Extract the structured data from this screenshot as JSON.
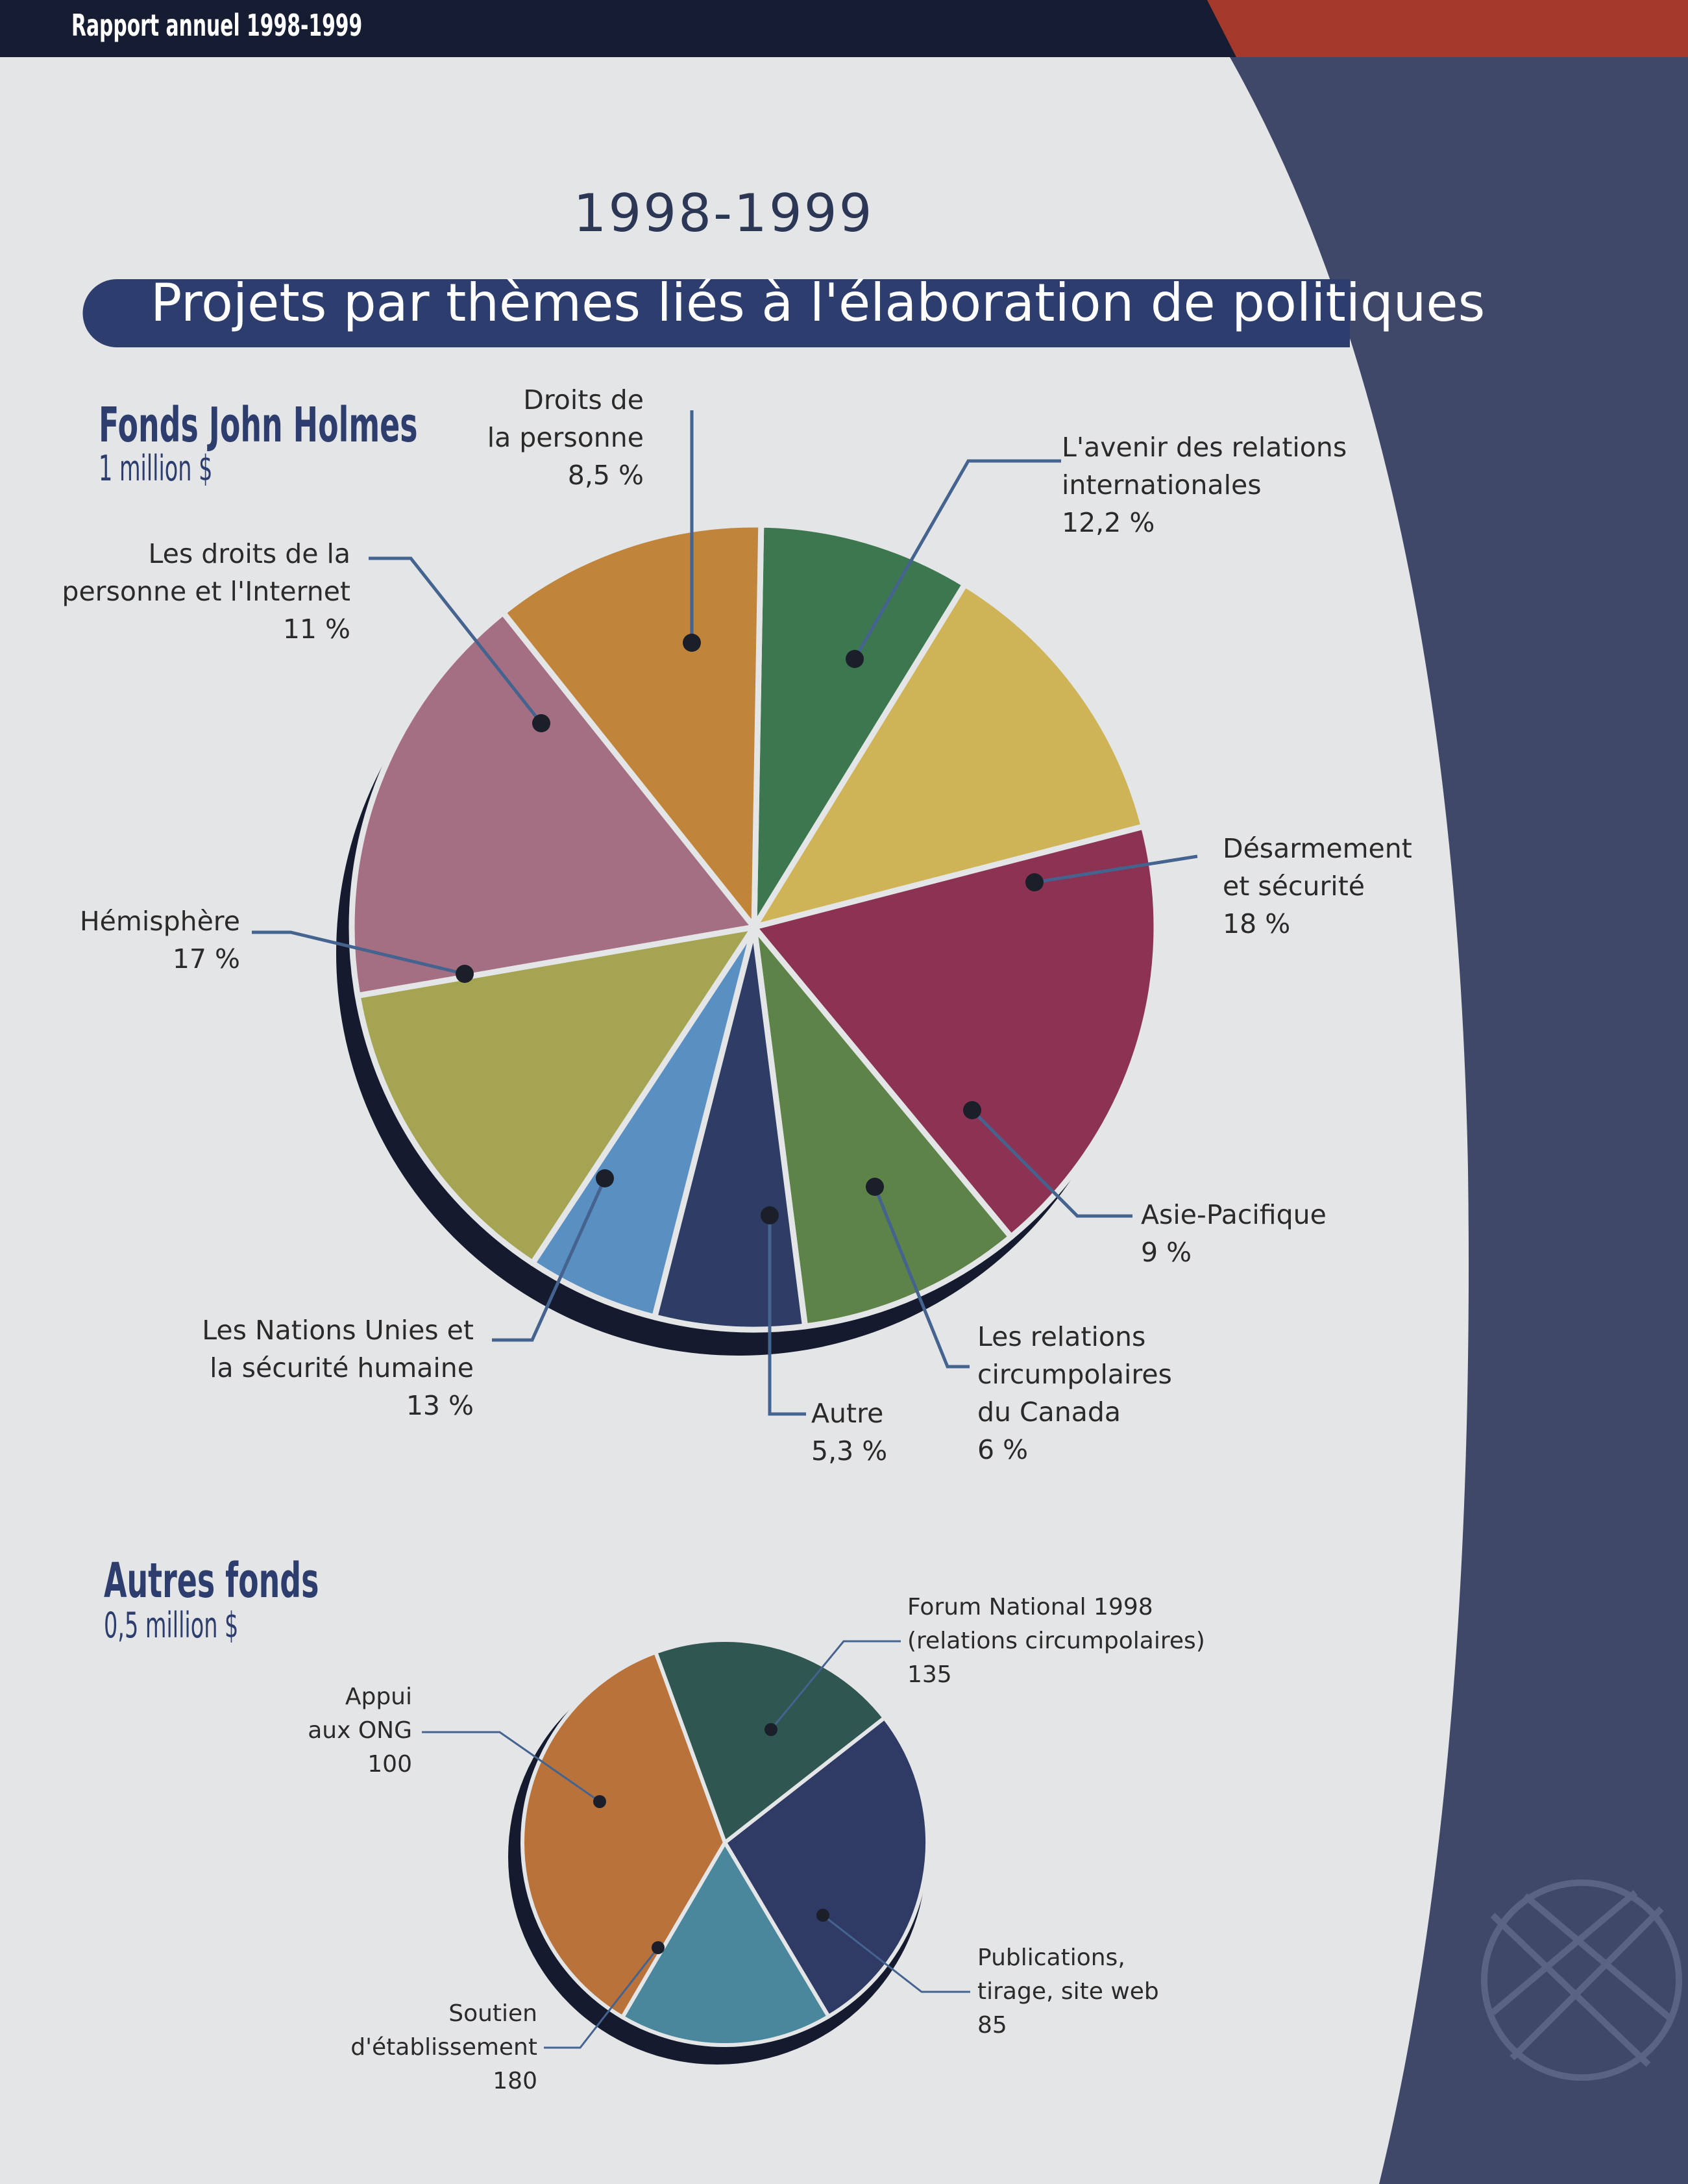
{
  "header": {
    "title": "Rapport annuel 1998-1999"
  },
  "page": {
    "year": "1998-1999",
    "banner": "Projets par thèmes liés à l'élaboration de politiques"
  },
  "colors": {
    "header_bar": "#161d33",
    "header_accent": "#a5392c",
    "side_band": "#3f4868",
    "banner": "#2c3d6e",
    "leader": "#45638f"
  },
  "funds": {
    "holmes": {
      "name": "Fonds John Holmes",
      "amount": "1 million $"
    },
    "autres": {
      "name": "Autres fonds",
      "amount": "0,5 million $"
    }
  },
  "labels": {
    "droits": [
      "Droits de",
      "la personne",
      "8,5 %"
    ],
    "avenir": [
      "L'avenir des relations",
      "internationales",
      "12,2 %"
    ],
    "desarmement": [
      "Désarmement",
      "et sécurité",
      "18 %"
    ],
    "asie": [
      "Asie-Pacifique",
      "9 %"
    ],
    "circum": [
      "Les relations",
      "circumpolaires",
      "du Canada",
      "6 %"
    ],
    "autre": [
      "Autre",
      "5,3 %"
    ],
    "nations": [
      "Les Nations Unies et",
      "la sécurité humaine",
      "13 %"
    ],
    "hemisphere": [
      "Hémisphère",
      "17 %"
    ],
    "internet": [
      "Les droits de la",
      "personne et l'Internet",
      "11 %"
    ],
    "forum": [
      "Forum National 1998",
      "(relations circumpolaires)",
      "135"
    ],
    "appui": [
      "Appui",
      "aux ONG",
      "100"
    ],
    "publications": [
      "Publications,",
      "tirage, site web",
      "85"
    ],
    "soutien": [
      "Soutien",
      "d'établissement",
      "180"
    ]
  },
  "chart_data": [
    {
      "type": "pie",
      "title": "Fonds John Holmes",
      "subtitle": "1 million $",
      "unit": "%",
      "slices": [
        {
          "label": "Droits de la personne",
          "value": 8.5,
          "color": "#3d774f"
        },
        {
          "label": "L'avenir des relations internationales",
          "value": 12.2,
          "color": "#cfb457"
        },
        {
          "label": "Désarmement et sécurité",
          "value": 18,
          "color": "#8c3253"
        },
        {
          "label": "Asie-Pacifique",
          "value": 9,
          "color": "#5d8348"
        },
        {
          "label": "Les relations circumpolaires du Canada",
          "value": 6,
          "color": "#2f3d66"
        },
        {
          "label": "Autre",
          "value": 5.3,
          "color": "#5a8fc2"
        },
        {
          "label": "Les Nations Unies et la sécurité humaine",
          "value": 13,
          "color": "#a5a452"
        },
        {
          "label": "Hémisphère",
          "value": 17,
          "color": "#a56f83"
        },
        {
          "label": "Les droits de la personne et l'Internet",
          "value": 11,
          "color": "#c0843a"
        }
      ]
    },
    {
      "type": "pie",
      "title": "Autres fonds",
      "subtitle": "0,5 million $",
      "unit": "",
      "slices": [
        {
          "label": "Forum National 1998 (relations circumpolaires)",
          "value": 135,
          "color": "#2f3b65"
        },
        {
          "label": "Publications, tirage, site web",
          "value": 85,
          "color": "#4a879c"
        },
        {
          "label": "Soutien d'établissement",
          "value": 180,
          "color": "#b8723a"
        },
        {
          "label": "Appui aux ONG",
          "value": 100,
          "color": "#2f5650"
        }
      ]
    }
  ]
}
